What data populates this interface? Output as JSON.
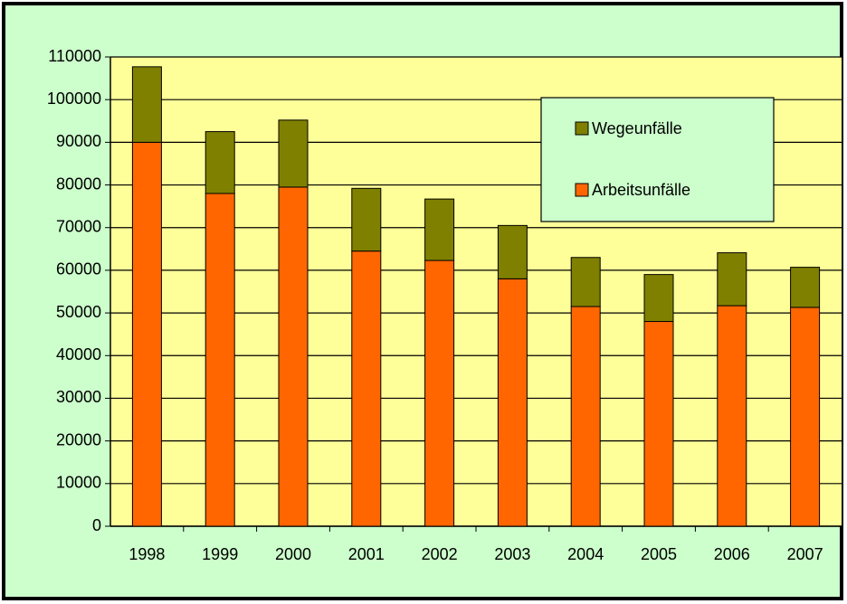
{
  "chart_data": {
    "type": "stacked_bar",
    "categories": [
      "1998",
      "1999",
      "2000",
      "2001",
      "2002",
      "2003",
      "2004",
      "2005",
      "2006",
      "2007"
    ],
    "series": [
      {
        "name": "Arbeitsunfälle",
        "color": "#ff6600",
        "values": [
          90000,
          78000,
          79500,
          64500,
          62300,
          58000,
          51500,
          48000,
          51700,
          51300
        ]
      },
      {
        "name": "Wegeunfälle",
        "color": "#808000",
        "values": [
          17700,
          14500,
          15700,
          14700,
          14400,
          12500,
          11500,
          11000,
          12400,
          9400
        ]
      }
    ],
    "ylim": [
      0,
      110000
    ],
    "yticks": [
      0,
      10000,
      20000,
      30000,
      40000,
      50000,
      60000,
      70000,
      80000,
      90000,
      100000,
      110000
    ],
    "grid": true,
    "legend": "upper right"
  }
}
